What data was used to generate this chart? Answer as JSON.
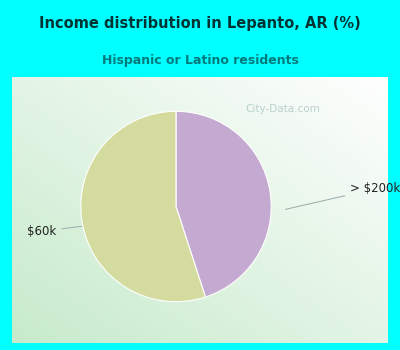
{
  "title": "Income distribution in Lepanto, AR (%)",
  "subtitle": "Hispanic or Latino residents",
  "title_color": "#003333",
  "subtitle_color": "#007a7a",
  "title_bg_color": "#00ffff",
  "slices": [
    {
      "label": "> $200k",
      "value": 45,
      "color": "#c4aad0"
    },
    {
      "label": "$60k",
      "value": 55,
      "color": "#d4db9f"
    }
  ],
  "label_color": "#222222",
  "watermark": "City-Data.com",
  "watermark_color": "#b0c8c8"
}
